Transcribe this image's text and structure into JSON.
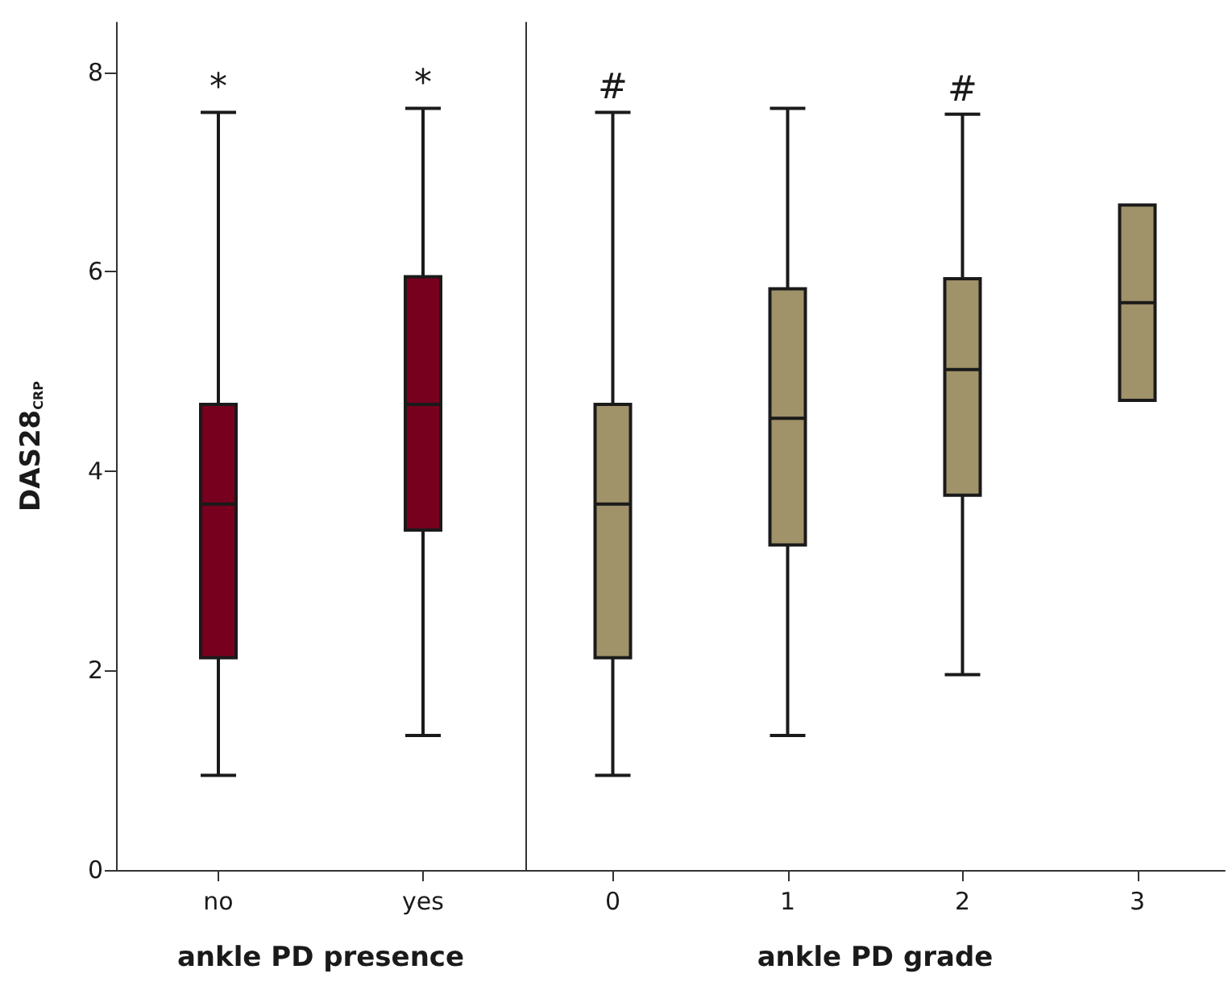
{
  "chart_data": [
    {
      "type": "box",
      "xlabel": "ankle PD presence",
      "ylabel": "DAS28$_{CRP}$",
      "categories": [
        "no",
        "yes"
      ],
      "ylim": [
        0,
        8.5
      ],
      "yticks": [
        0,
        2,
        4,
        6,
        8
      ],
      "grid": false,
      "series": [
        {
          "color": "#76001e",
          "boxes": [
            {
              "low": 0.95,
              "q1": 2.13,
              "median": 3.67,
              "q3": 4.67,
              "high": 7.6
            },
            {
              "low": 1.35,
              "q1": 3.41,
              "median": 4.67,
              "q3": 5.95,
              "high": 7.64
            }
          ]
        }
      ],
      "annotations": [
        {
          "text": "*",
          "x": "no",
          "y": 7.6
        },
        {
          "text": "*",
          "x": "yes",
          "y": 7.64
        }
      ]
    },
    {
      "type": "box",
      "xlabel": "ankle PD grade",
      "categories": [
        "0",
        "1",
        "2",
        "3"
      ],
      "ylim": [
        0,
        8.5
      ],
      "yticks": [
        0,
        2,
        4,
        6,
        8
      ],
      "tick_labels": "x",
      "grid": false,
      "series": [
        {
          "color": "#a09269",
          "boxes": [
            {
              "low": 0.95,
              "q1": 2.13,
              "median": 3.67,
              "q3": 4.67,
              "high": 7.6
            },
            {
              "low": 1.35,
              "q1": 3.26,
              "median": 4.53,
              "q3": 5.83,
              "high": 7.64
            },
            {
              "low": 1.96,
              "q1": 3.76,
              "median": 5.02,
              "q3": 5.93,
              "high": 7.58
            },
            {
              "low": 4.71,
              "q1": 4.71,
              "median": 5.69,
              "q3": 6.67,
              "high": 6.67
            }
          ]
        }
      ],
      "annotations": [
        {
          "text": "#",
          "x": "0",
          "y": 7.6
        },
        {
          "text": "#",
          "x": "2",
          "y": 7.58
        }
      ]
    }
  ]
}
